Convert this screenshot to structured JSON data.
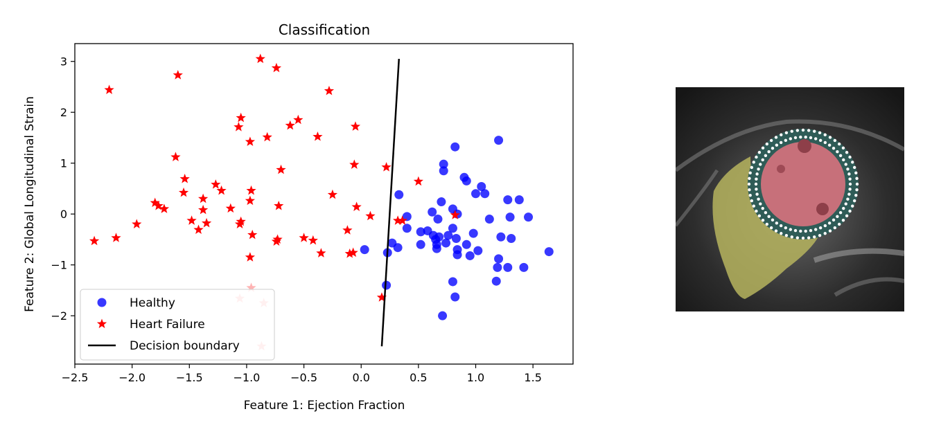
{
  "chart_data": {
    "type": "scatter",
    "title": "Classification",
    "xlabel": "Feature 1: Ejection Fraction",
    "ylabel": "Feature 2: Global Longitudinal Strain",
    "xlim": [
      -2.5,
      1.85
    ],
    "ylim": [
      -2.95,
      3.35
    ],
    "xticks": [
      -2.5,
      -2.0,
      -1.5,
      -1.0,
      -0.5,
      0.0,
      0.5,
      1.0,
      1.5
    ],
    "xtick_labels": [
      "−2.5",
      "−2.0",
      "−1.5",
      "−1.0",
      "−0.5",
      "0.0",
      "0.5",
      "1.0",
      "1.5"
    ],
    "yticks": [
      -2,
      -1,
      0,
      1,
      2,
      3
    ],
    "ytick_labels": [
      "−2",
      "−1",
      "0",
      "1",
      "2",
      "3"
    ],
    "grid": false,
    "legend_position": "lower-left",
    "series": [
      {
        "name": "Healthy",
        "marker": "circle",
        "color": "#0000ff",
        "points": [
          [
            1.2,
            1.45
          ],
          [
            0.82,
            1.32
          ],
          [
            0.72,
            0.98
          ],
          [
            0.72,
            0.85
          ],
          [
            0.9,
            0.72
          ],
          [
            0.92,
            0.65
          ],
          [
            1.05,
            0.54
          ],
          [
            1.08,
            0.4
          ],
          [
            1.0,
            0.4
          ],
          [
            0.33,
            0.38
          ],
          [
            1.28,
            0.28
          ],
          [
            1.38,
            0.28
          ],
          [
            0.7,
            0.24
          ],
          [
            0.8,
            0.1
          ],
          [
            0.62,
            0.04
          ],
          [
            0.84,
            0.0
          ],
          [
            0.4,
            -0.05
          ],
          [
            1.3,
            -0.06
          ],
          [
            1.46,
            -0.06
          ],
          [
            1.12,
            -0.1
          ],
          [
            0.67,
            -0.1
          ],
          [
            0.4,
            -0.28
          ],
          [
            0.8,
            -0.28
          ],
          [
            0.52,
            -0.35
          ],
          [
            0.58,
            -0.33
          ],
          [
            0.98,
            -0.38
          ],
          [
            0.63,
            -0.42
          ],
          [
            0.76,
            -0.42
          ],
          [
            0.68,
            -0.45
          ],
          [
            0.83,
            -0.48
          ],
          [
            0.65,
            -0.5
          ],
          [
            1.22,
            -0.45
          ],
          [
            1.31,
            -0.48
          ],
          [
            0.27,
            -0.57
          ],
          [
            0.52,
            -0.6
          ],
          [
            0.66,
            -0.6
          ],
          [
            0.74,
            -0.57
          ],
          [
            0.92,
            -0.6
          ],
          [
            0.66,
            -0.68
          ],
          [
            0.32,
            -0.66
          ],
          [
            0.03,
            -0.7
          ],
          [
            0.84,
            -0.7
          ],
          [
            1.02,
            -0.72
          ],
          [
            0.23,
            -0.76
          ],
          [
            1.64,
            -0.74
          ],
          [
            0.84,
            -0.8
          ],
          [
            0.95,
            -0.82
          ],
          [
            1.2,
            -0.88
          ],
          [
            1.19,
            -1.05
          ],
          [
            1.28,
            -1.05
          ],
          [
            1.42,
            -1.05
          ],
          [
            1.18,
            -1.32
          ],
          [
            0.8,
            -1.33
          ],
          [
            0.22,
            -1.4
          ],
          [
            0.82,
            -1.63
          ],
          [
            0.71,
            -2.0
          ]
        ]
      },
      {
        "name": "Heart Failure",
        "marker": "star",
        "color": "#ff0000",
        "points": [
          [
            -0.88,
            3.05
          ],
          [
            -0.74,
            2.87
          ],
          [
            -1.6,
            2.73
          ],
          [
            -2.2,
            2.44
          ],
          [
            -0.28,
            2.42
          ],
          [
            -1.05,
            1.89
          ],
          [
            -0.55,
            1.85
          ],
          [
            -1.07,
            1.71
          ],
          [
            -0.62,
            1.74
          ],
          [
            -0.05,
            1.72
          ],
          [
            -0.82,
            1.51
          ],
          [
            -0.38,
            1.52
          ],
          [
            -0.97,
            1.42
          ],
          [
            -1.62,
            1.12
          ],
          [
            -0.06,
            0.97
          ],
          [
            0.22,
            0.92
          ],
          [
            -0.7,
            0.87
          ],
          [
            -1.54,
            0.69
          ],
          [
            0.5,
            0.64
          ],
          [
            -1.27,
            0.58
          ],
          [
            -1.22,
            0.46
          ],
          [
            -0.96,
            0.46
          ],
          [
            -1.55,
            0.42
          ],
          [
            -0.25,
            0.38
          ],
          [
            -1.38,
            0.3
          ],
          [
            -0.97,
            0.26
          ],
          [
            -1.8,
            0.22
          ],
          [
            -1.77,
            0.16
          ],
          [
            -0.72,
            0.16
          ],
          [
            -0.04,
            0.14
          ],
          [
            -1.72,
            0.1
          ],
          [
            -1.38,
            0.08
          ],
          [
            -1.14,
            0.11
          ],
          [
            0.08,
            -0.04
          ],
          [
            0.32,
            -0.13
          ],
          [
            0.36,
            -0.13
          ],
          [
            0.82,
            -0.02
          ],
          [
            -1.48,
            -0.13
          ],
          [
            -1.05,
            -0.15
          ],
          [
            -1.96,
            -0.2
          ],
          [
            -1.06,
            -0.2
          ],
          [
            -1.35,
            -0.18
          ],
          [
            -1.42,
            -0.31
          ],
          [
            -0.12,
            -0.32
          ],
          [
            -0.95,
            -0.41
          ],
          [
            -2.14,
            -0.47
          ],
          [
            -0.5,
            -0.47
          ],
          [
            -0.42,
            -0.52
          ],
          [
            -0.73,
            -0.5
          ],
          [
            -0.74,
            -0.54
          ],
          [
            -2.33,
            -0.53
          ],
          [
            -0.35,
            -0.77
          ],
          [
            -0.07,
            -0.76
          ],
          [
            -0.1,
            -0.78
          ],
          [
            -0.97,
            -0.85
          ],
          [
            0.18,
            -1.64
          ]
        ]
      },
      {
        "name": "Heart Failure",
        "marker": "star",
        "color": "#ffb3b3",
        "points": [
          [
            -0.96,
            -1.45
          ],
          [
            -1.06,
            -1.66
          ],
          [
            -0.85,
            -1.75
          ],
          [
            -0.87,
            -2.6
          ]
        ]
      }
    ],
    "decision_boundary": {
      "name": "Decision boundary",
      "color": "#000000",
      "points": [
        [
          0.18,
          -2.6
        ],
        [
          0.33,
          3.05
        ]
      ]
    },
    "legend": [
      {
        "label": "Healthy",
        "marker": "circle",
        "color": "#0000ff"
      },
      {
        "label": "Heart Failure",
        "marker": "star",
        "color": "#ff0000"
      },
      {
        "label": "Decision boundary",
        "marker": "line",
        "color": "#000000"
      }
    ]
  },
  "mri_image": {
    "colors": {
      "background": "#1a1a1a",
      "left_ventricle": "#c7707a",
      "right_ventricle": "#b6b45e",
      "myocardium_ring": "#2f5c57",
      "contour_dots": "#ffffff"
    }
  }
}
